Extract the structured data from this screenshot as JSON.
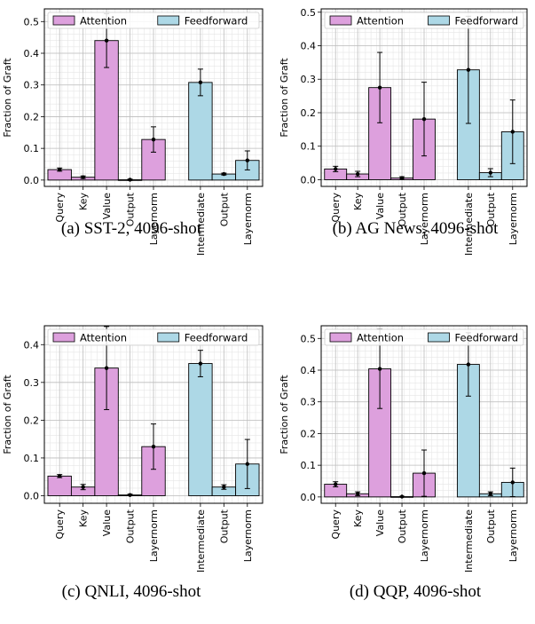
{
  "colors": {
    "attention": "#dda0dd",
    "feedforward": "#add8e6",
    "edge": "#000000",
    "grid_major": "#bdbdbd",
    "grid_minor": "#e6e6e6"
  },
  "chart_data": [
    {
      "type": "bar",
      "caption": "(a) SST-2, 4096-shot",
      "ylabel": "Fraction of Graft",
      "ylim": [
        -0.02,
        0.54
      ],
      "yticks": [
        "0.0",
        "0.1",
        "0.2",
        "0.3",
        "0.4",
        "0.5"
      ],
      "grid": true,
      "legend": "top",
      "series": [
        {
          "name": "Attention",
          "categories": [
            "Query",
            "Key",
            "Value",
            "Output",
            "Layernorm"
          ],
          "values": [
            0.033,
            0.009,
            0.44,
            0.001,
            0.128
          ],
          "errors": [
            0.005,
            0.004,
            0.085,
            0.002,
            0.04
          ]
        },
        {
          "name": "Feedforward",
          "categories": [
            "Intermediate",
            "Output",
            "Layernorm"
          ],
          "values": [
            0.308,
            0.019,
            0.062
          ],
          "errors": [
            0.042,
            0.003,
            0.03
          ]
        }
      ]
    },
    {
      "type": "bar",
      "caption": "(b) AG News, 4096-shot",
      "ylabel": "Fraction of Graft",
      "ylim": [
        -0.02,
        0.51
      ],
      "yticks": [
        "0.0",
        "0.1",
        "0.2",
        "0.3",
        "0.4",
        "0.5"
      ],
      "grid": true,
      "legend": "top",
      "series": [
        {
          "name": "Attention",
          "categories": [
            "Query",
            "Key",
            "Value",
            "Output",
            "Layernorm"
          ],
          "values": [
            0.032,
            0.017,
            0.275,
            0.005,
            0.181
          ],
          "errors": [
            0.008,
            0.008,
            0.105,
            0.004,
            0.11
          ]
        },
        {
          "name": "Feedforward",
          "categories": [
            "Intermediate",
            "Output",
            "Layernorm"
          ],
          "values": [
            0.328,
            0.021,
            0.143
          ],
          "errors": [
            0.16,
            0.012,
            0.095
          ]
        }
      ]
    },
    {
      "type": "bar",
      "caption": "(c) QNLI, 4096-shot",
      "ylabel": "Fraction of Graft",
      "ylim": [
        -0.02,
        0.45
      ],
      "yticks": [
        "0.0",
        "0.1",
        "0.2",
        "0.3",
        "0.4"
      ],
      "grid": true,
      "legend": "top",
      "series": [
        {
          "name": "Attention",
          "categories": [
            "Query",
            "Key",
            "Value",
            "Output",
            "Layernorm"
          ],
          "values": [
            0.052,
            0.023,
            0.338,
            0.002,
            0.13
          ],
          "errors": [
            0.004,
            0.007,
            0.11,
            0.002,
            0.06
          ]
        },
        {
          "name": "Feedforward",
          "categories": [
            "Intermediate",
            "Output",
            "Layernorm"
          ],
          "values": [
            0.35,
            0.023,
            0.084
          ],
          "errors": [
            0.035,
            0.006,
            0.065
          ]
        }
      ]
    },
    {
      "type": "bar",
      "caption": "(d) QQP, 4096-shot",
      "ylabel": "Fraction of Graft",
      "ylim": [
        -0.02,
        0.54
      ],
      "yticks": [
        "0.0",
        "0.1",
        "0.2",
        "0.3",
        "0.4",
        "0.5"
      ],
      "grid": true,
      "legend": "top",
      "series": [
        {
          "name": "Attention",
          "categories": [
            "Query",
            "Key",
            "Value",
            "Output",
            "Layernorm"
          ],
          "values": [
            0.04,
            0.01,
            0.404,
            0.001,
            0.075
          ],
          "errors": [
            0.008,
            0.006,
            0.125,
            0.001,
            0.073
          ]
        },
        {
          "name": "Feedforward",
          "categories": [
            "Intermediate",
            "Output",
            "Layernorm"
          ],
          "values": [
            0.418,
            0.01,
            0.046
          ],
          "errors": [
            0.1,
            0.006,
            0.045
          ]
        }
      ]
    }
  ]
}
